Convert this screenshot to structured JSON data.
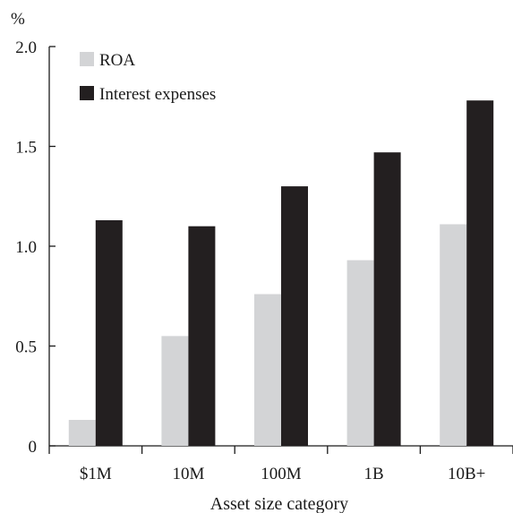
{
  "chart_data": {
    "type": "bar",
    "title": "",
    "unit_label": "%",
    "xlabel": "Asset size category",
    "ylabel": "",
    "categories": [
      "$1M",
      "10M",
      "100M",
      "1B",
      "10B+"
    ],
    "series": [
      {
        "name": "ROA",
        "values": [
          0.13,
          0.55,
          0.76,
          0.93,
          1.11
        ],
        "color": "#d3d4d6"
      },
      {
        "name": "Interest expenses",
        "values": [
          1.13,
          1.1,
          1.3,
          1.47,
          1.73
        ],
        "color": "#231f20"
      }
    ],
    "ylim": [
      0,
      2.0
    ],
    "yticks": [
      {
        "value": 0,
        "label": "0"
      },
      {
        "value": 0.5,
        "label": "0.5"
      },
      {
        "value": 1.0,
        "label": "1.0"
      },
      {
        "value": 1.5,
        "label": "1.5"
      },
      {
        "value": 2.0,
        "label": "2.0"
      }
    ],
    "grid": false,
    "legend_position": "top-left"
  }
}
